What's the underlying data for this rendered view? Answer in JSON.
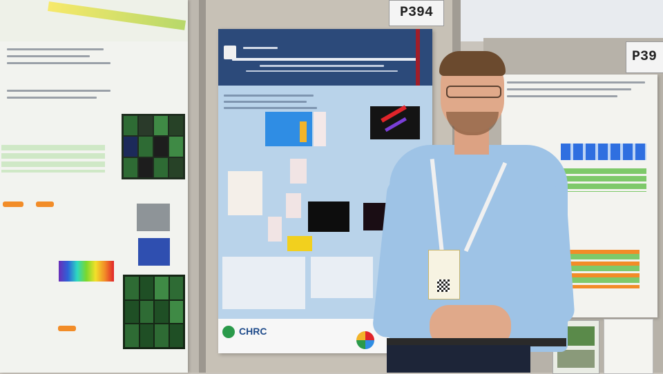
{
  "signs": {
    "left_board_number": "P394",
    "right_board_number": "P39"
  },
  "poster_center": {
    "footer_logo_text": "CHRC"
  },
  "colors": {
    "booth_wall": "#c9c4bc",
    "poster_header": "#2c4a7a",
    "poster_body": "#b9d3ea",
    "shirt": "#9ec3e6",
    "trousers": "#1d2538",
    "lanyard": "#f0f0f0"
  }
}
